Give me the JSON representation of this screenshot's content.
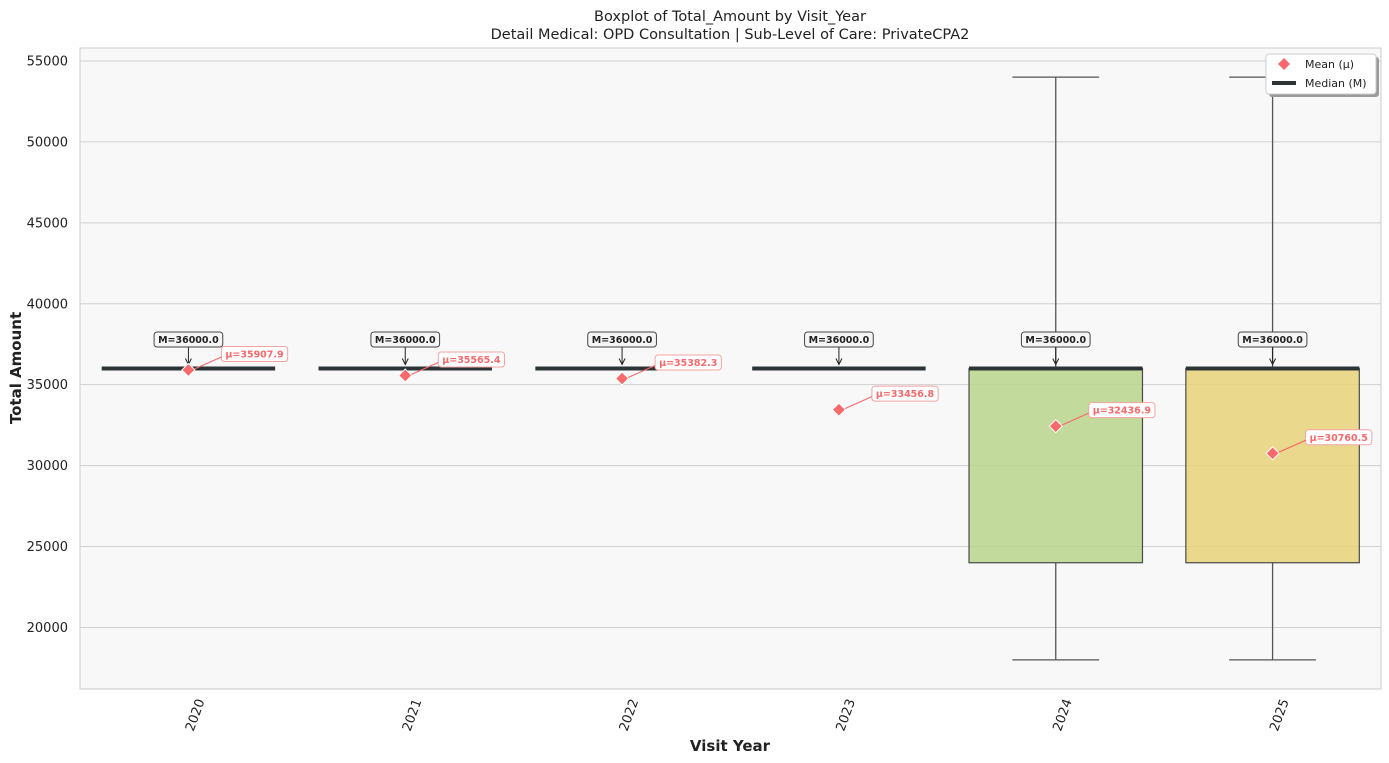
{
  "chart_data": {
    "type": "boxplot",
    "title": "Boxplot of Total_Amount by Visit_Year",
    "subtitle": "Detail Medical: OPD Consultation | Sub-Level of Care: PrivateCPA2",
    "xlabel": "Visit Year",
    "ylabel": "Total Amount",
    "ylim": [
      16200,
      55800
    ],
    "yticks": [
      20000,
      25000,
      30000,
      35000,
      40000,
      45000,
      50000,
      55000
    ],
    "grid": "horizontal",
    "categories": [
      "2020",
      "2021",
      "2022",
      "2023",
      "2024",
      "2025"
    ],
    "boxes": [
      {
        "category": "2020",
        "q1": 36000,
        "median": 36000,
        "q3": 36000,
        "whisker_low": 36000,
        "whisker_high": 36000,
        "mean": 35907.9,
        "median_label": "M=36000.0",
        "mean_label": "μ=35907.9",
        "color": "#f8766d"
      },
      {
        "category": "2021",
        "q1": 36000,
        "median": 36000,
        "q3": 36000,
        "whisker_low": 36000,
        "whisker_high": 36000,
        "mean": 35565.4,
        "median_label": "M=36000.0",
        "mean_label": "μ=35565.4",
        "color": "#f4a261"
      },
      {
        "category": "2022",
        "q1": 36000,
        "median": 36000,
        "q3": 36000,
        "whisker_low": 36000,
        "whisker_high": 36000,
        "mean": 35382.3,
        "median_label": "M=36000.0",
        "mean_label": "μ=35382.3",
        "color": "#e9c46a"
      },
      {
        "category": "2023",
        "q1": 36000,
        "median": 36000,
        "q3": 36000,
        "whisker_low": 36000,
        "whisker_high": 36000,
        "mean": 33456.8,
        "median_label": "M=36000.0",
        "mean_label": "μ=33456.8",
        "color": "#a8d08d"
      },
      {
        "category": "2024",
        "q1": 24000,
        "median": 36000,
        "q3": 36000,
        "whisker_low": 18000,
        "whisker_high": 54000,
        "mean": 32436.9,
        "median_label": "M=36000.0",
        "mean_label": "μ=32436.9",
        "color": "#b9d58b"
      },
      {
        "category": "2025",
        "q1": 24000,
        "median": 36000,
        "q3": 36000,
        "whisker_low": 18000,
        "whisker_high": 54000,
        "mean": 30760.5,
        "median_label": "M=36000.0",
        "mean_label": "μ=30760.5",
        "color": "#e8d47a"
      }
    ],
    "legend": {
      "position": "top-right",
      "entries": [
        {
          "label": "Mean (μ)",
          "marker": "diamond",
          "color": "#f8696b"
        },
        {
          "label": "Median (M)",
          "marker": "line",
          "color": "#2d3436"
        }
      ]
    },
    "colors": {
      "plot_background": "#f8f8f8",
      "mean": "#f8696b",
      "median": "#2d3436",
      "grid": "#d0d0d0",
      "whisker": "#555555"
    }
  }
}
